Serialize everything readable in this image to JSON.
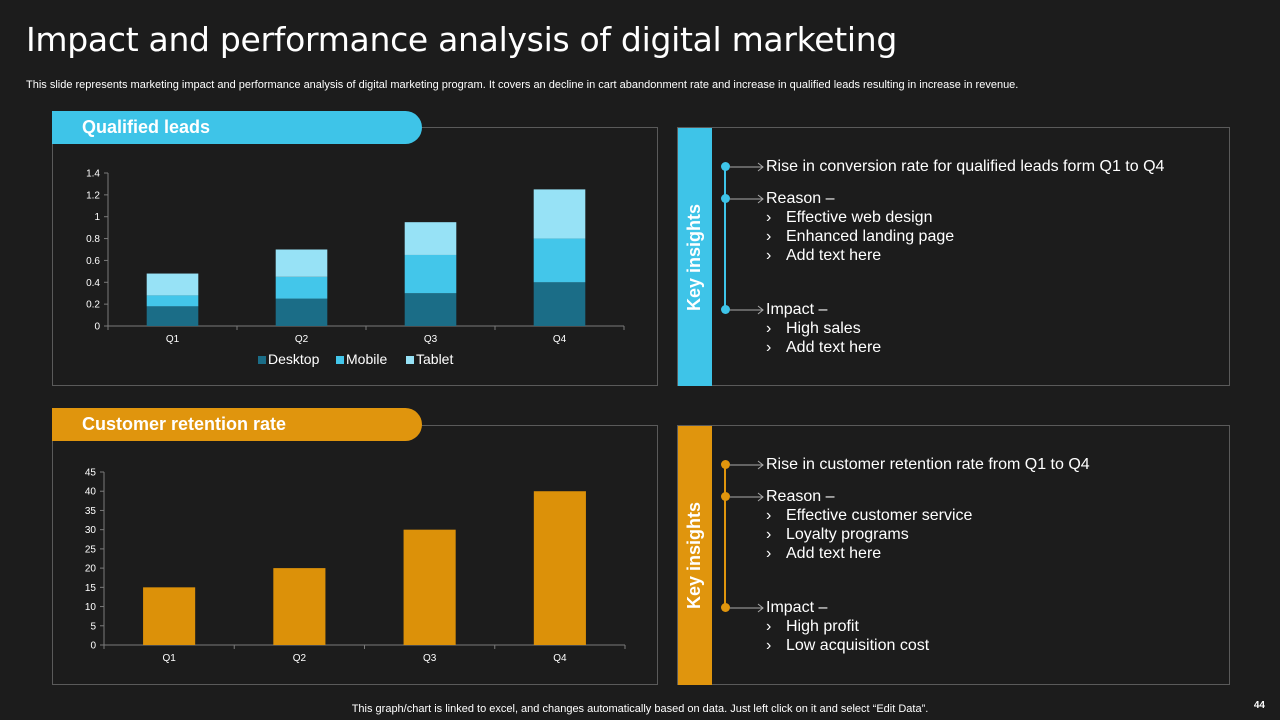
{
  "title": "Impact and performance analysis of digital marketing",
  "subtitle": "This slide represents marketing impact and performance analysis of digital marketing program. It covers an decline in cart abandonment rate and increase in qualified leads resulting in increase in revenue.",
  "footer": "This graph/chart is linked to excel,  and changes automatically based on data. Just left click on it and select “Edit Data”.",
  "page_number": "44",
  "colors": {
    "blue_accent": "#3ec4e8",
    "orange_accent": "#e0950d",
    "desktop": "#1b6d87",
    "mobile": "#43c6ea",
    "tablet": "#97e2f6",
    "retention_bar": "#dc9109"
  },
  "leads_panel": {
    "label": "Qualified leads",
    "insights_label": "Key insights",
    "rise_text": "Rise in conversion rate for qualified leads form Q1 to Q4",
    "reason_label": "Reason –",
    "reasons": [
      "Effective web design",
      "Enhanced landing page",
      "Add text here"
    ],
    "impact_label": "Impact –",
    "impacts": [
      "High sales",
      "Add text here"
    ]
  },
  "retention_panel": {
    "label": "Customer retention rate",
    "insights_label": "Key insights",
    "rise_text": "Rise in customer retention rate from Q1 to Q4",
    "reason_label": "Reason –",
    "reasons": [
      "Effective customer service",
      "Loyalty programs",
      "Add text here"
    ],
    "impact_label": "Impact –",
    "impacts": [
      "High profit",
      "Low acquisition cost"
    ]
  },
  "chevron": "›",
  "chart_data": [
    {
      "type": "bar",
      "stacked": true,
      "title": "Qualified leads",
      "categories": [
        "Q1",
        "Q2",
        "Q3",
        "Q4"
      ],
      "series": [
        {
          "name": "Desktop",
          "values": [
            0.18,
            0.25,
            0.3,
            0.4
          ]
        },
        {
          "name": "Mobile",
          "values": [
            0.1,
            0.2,
            0.35,
            0.4
          ]
        },
        {
          "name": "Tablet",
          "values": [
            0.2,
            0.25,
            0.3,
            0.45
          ]
        }
      ],
      "yticks": [
        "0",
        "0.2",
        "0.4",
        "0.6",
        "0.8",
        "1",
        "1.2",
        "1.4"
      ],
      "ylim": [
        0,
        1.4
      ],
      "legend": "bottom",
      "xlabel": "",
      "ylabel": ""
    },
    {
      "type": "bar",
      "title": "Customer retention rate",
      "categories": [
        "Q1",
        "Q2",
        "Q3",
        "Q4"
      ],
      "values": [
        15,
        20,
        30,
        40
      ],
      "yticks": [
        "0",
        "5",
        "10",
        "15",
        "20",
        "25",
        "30",
        "35",
        "40",
        "45"
      ],
      "ylim": [
        0,
        45
      ],
      "xlabel": "",
      "ylabel": ""
    }
  ]
}
